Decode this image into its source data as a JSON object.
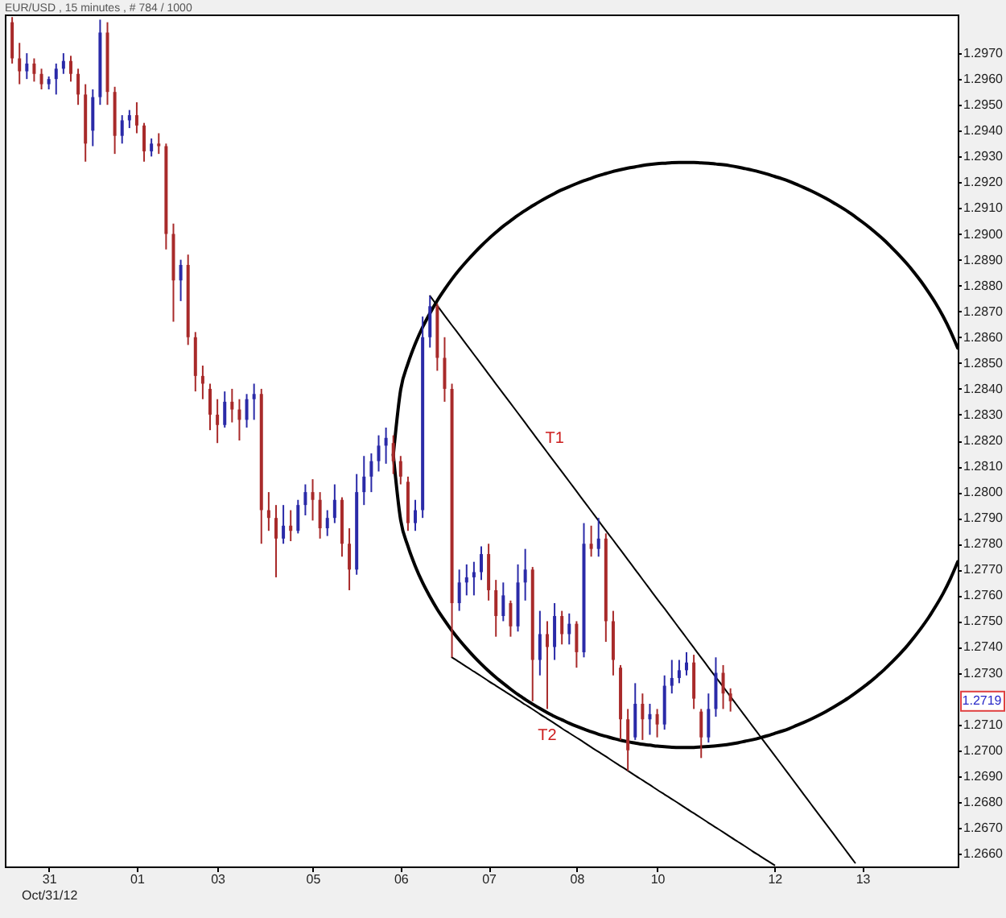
{
  "chart_data": {
    "type": "candlestick",
    "title": "EUR/USD , 15 minutes , # 784 / 1000",
    "categories": [
      null,
      null,
      null,
      null,
      null,
      "31\nOct/31/12",
      null,
      null,
      null,
      null,
      null,
      null,
      null,
      null,
      null,
      null,
      null,
      "01",
      null,
      null,
      null,
      null,
      null,
      null,
      null,
      null,
      null,
      null,
      "03",
      null,
      null,
      null,
      null,
      null,
      null,
      null,
      null,
      null,
      null,
      null,
      null,
      "05",
      null,
      null,
      null,
      null,
      null,
      null,
      null,
      null,
      null,
      null,
      null,
      "06",
      null,
      null,
      null,
      null,
      null,
      null,
      null,
      null,
      null,
      null,
      null,
      "07",
      null,
      null,
      null,
      null,
      null,
      null,
      null,
      null,
      null,
      null,
      null,
      "08",
      null,
      null,
      null,
      null,
      null,
      null,
      null,
      null,
      null,
      null,
      "10",
      null,
      null,
      null,
      null,
      null,
      null,
      null,
      null,
      null,
      null,
      null,
      null,
      null,
      null,
      null,
      "12",
      null,
      null,
      null,
      null,
      null,
      null,
      null,
      null,
      null,
      null,
      null,
      "13",
      null,
      null,
      null,
      null,
      null,
      null,
      null,
      null,
      null,
      null,
      null,
      null,
      null
    ],
    "ohlc": [
      [
        1.2982,
        1.2984,
        1.2966,
        1.2968
      ],
      [
        1.2968,
        1.2974,
        1.2958,
        1.2963
      ],
      [
        1.2963,
        1.297,
        1.296,
        1.2966
      ],
      [
        1.2966,
        1.2968,
        1.2959,
        1.2962
      ],
      [
        1.2962,
        1.2964,
        1.2956,
        1.2958
      ],
      [
        1.2958,
        1.2961,
        1.2956,
        1.296
      ],
      [
        1.296,
        1.2966,
        1.2954,
        1.2964
      ],
      [
        1.2964,
        1.297,
        1.2962,
        1.2967
      ],
      [
        1.2967,
        1.2969,
        1.2959,
        1.2962
      ],
      [
        1.2962,
        1.2964,
        1.295,
        1.2954
      ],
      [
        1.2954,
        1.2958,
        1.2928,
        1.2935
      ],
      [
        1.294,
        1.2956,
        1.2934,
        1.2953
      ],
      [
        1.2953,
        1.2983,
        1.295,
        1.2978
      ],
      [
        1.2978,
        1.2982,
        1.295,
        1.2955
      ],
      [
        1.2955,
        1.2957,
        1.2931,
        1.2938
      ],
      [
        1.2938,
        1.2946,
        1.2935,
        1.2944
      ],
      [
        1.2944,
        1.2948,
        1.2941,
        1.2946
      ],
      [
        1.2946,
        1.2951,
        1.2939,
        1.2942
      ],
      [
        1.2942,
        1.2943,
        1.2928,
        1.2932
      ],
      [
        1.2932,
        1.2937,
        1.293,
        1.2935
      ],
      [
        1.2935,
        1.2939,
        1.2931,
        1.2934
      ],
      [
        1.2934,
        1.2935,
        1.2894,
        1.29
      ],
      [
        1.29,
        1.2904,
        1.2866,
        1.2882
      ],
      [
        1.2882,
        1.289,
        1.2874,
        1.2888
      ],
      [
        1.2888,
        1.2892,
        1.2857,
        1.286
      ],
      [
        1.286,
        1.2862,
        1.2839,
        1.2845
      ],
      [
        1.2845,
        1.2849,
        1.2836,
        1.2842
      ],
      [
        1.284,
        1.2842,
        1.2824,
        1.283
      ],
      [
        1.283,
        1.2836,
        1.2819,
        1.2826
      ],
      [
        1.2826,
        1.2839,
        1.2825,
        1.2835
      ],
      [
        1.2835,
        1.284,
        1.2827,
        1.2832
      ],
      [
        1.2832,
        1.2836,
        1.282,
        1.2828
      ],
      [
        1.2828,
        1.2838,
        1.2825,
        1.2836
      ],
      [
        1.2836,
        1.2842,
        1.2828,
        1.2838
      ],
      [
        1.2838,
        1.284,
        1.278,
        1.2793
      ],
      [
        1.2793,
        1.28,
        1.2785,
        1.279
      ],
      [
        1.279,
        1.2795,
        1.2767,
        1.2782
      ],
      [
        1.2782,
        1.2795,
        1.278,
        1.2787
      ],
      [
        1.2787,
        1.2793,
        1.2781,
        1.2785
      ],
      [
        1.2785,
        1.2797,
        1.2784,
        1.2795
      ],
      [
        1.2795,
        1.2803,
        1.2791,
        1.28
      ],
      [
        1.28,
        1.2805,
        1.2789,
        1.2797
      ],
      [
        1.2797,
        1.28,
        1.2782,
        1.2786
      ],
      [
        1.2786,
        1.2793,
        1.2783,
        1.279
      ],
      [
        1.279,
        1.2803,
        1.2788,
        1.2797
      ],
      [
        1.2797,
        1.2798,
        1.2775,
        1.278
      ],
      [
        1.278,
        1.2786,
        1.2762,
        1.277
      ],
      [
        1.277,
        1.2807,
        1.2768,
        1.28
      ],
      [
        1.28,
        1.2814,
        1.2795,
        1.2806
      ],
      [
        1.2806,
        1.2815,
        1.28,
        1.2812
      ],
      [
        1.2812,
        1.2822,
        1.2808,
        1.2818
      ],
      [
        1.2818,
        1.2825,
        1.2811,
        1.2821
      ],
      [
        1.2819,
        1.2822,
        1.2807,
        1.2812
      ],
      [
        1.2812,
        1.2814,
        1.2803,
        1.2806
      ],
      [
        1.2804,
        1.2806,
        1.2785,
        1.2788
      ],
      [
        1.2788,
        1.2797,
        1.2785,
        1.2793
      ],
      [
        1.2793,
        1.2868,
        1.279,
        1.286
      ],
      [
        1.286,
        1.2876,
        1.2856,
        1.2872
      ],
      [
        1.2872,
        1.2873,
        1.2847,
        1.2852
      ],
      [
        1.2852,
        1.286,
        1.2835,
        1.284
      ],
      [
        1.284,
        1.2842,
        1.2736,
        1.2757
      ],
      [
        1.2757,
        1.277,
        1.2754,
        1.2765
      ],
      [
        1.2765,
        1.2772,
        1.276,
        1.2767
      ],
      [
        1.2767,
        1.2773,
        1.276,
        1.2769
      ],
      [
        1.2769,
        1.2779,
        1.2766,
        1.2776
      ],
      [
        1.2776,
        1.278,
        1.2758,
        1.2762
      ],
      [
        1.2762,
        1.2766,
        1.2744,
        1.2752
      ],
      [
        1.2752,
        1.2765,
        1.275,
        1.276
      ],
      [
        1.2757,
        1.2758,
        1.2744,
        1.2748
      ],
      [
        1.2748,
        1.2772,
        1.2746,
        1.2765
      ],
      [
        1.2765,
        1.2778,
        1.2758,
        1.277
      ],
      [
        1.277,
        1.2771,
        1.2719,
        1.2735
      ],
      [
        1.2735,
        1.2754,
        1.2729,
        1.2745
      ],
      [
        1.2745,
        1.275,
        1.2716,
        1.274
      ],
      [
        1.274,
        1.2757,
        1.2735,
        1.2752
      ],
      [
        1.2752,
        1.2754,
        1.2741,
        1.2745
      ],
      [
        1.2745,
        1.2753,
        1.2741,
        1.2749
      ],
      [
        1.2749,
        1.275,
        1.2732,
        1.2738
      ],
      [
        1.2738,
        1.2788,
        1.2736,
        1.278
      ],
      [
        1.278,
        1.2787,
        1.2775,
        1.2778
      ],
      [
        1.2778,
        1.279,
        1.2775,
        1.2782
      ],
      [
        1.2782,
        1.2784,
        1.2742,
        1.275
      ],
      [
        1.275,
        1.2754,
        1.2729,
        1.2735
      ],
      [
        1.2732,
        1.2733,
        1.2704,
        1.2712
      ],
      [
        1.2712,
        1.2716,
        1.2692,
        1.27
      ],
      [
        1.2705,
        1.2726,
        1.2704,
        1.2718
      ],
      [
        1.2718,
        1.2722,
        1.2704,
        1.2712
      ],
      [
        1.2712,
        1.2718,
        1.2706,
        1.2714
      ],
      [
        1.2714,
        1.2716,
        1.2705,
        1.271
      ],
      [
        1.271,
        1.2729,
        1.2708,
        1.2725
      ],
      [
        1.2725,
        1.2735,
        1.2722,
        1.2728
      ],
      [
        1.2728,
        1.2735,
        1.2726,
        1.2731
      ],
      [
        1.2731,
        1.2738,
        1.2729,
        1.2734
      ],
      [
        1.2734,
        1.2737,
        1.2716,
        1.272
      ],
      [
        1.2715,
        1.2716,
        1.2697,
        1.2705
      ],
      [
        1.2705,
        1.2722,
        1.2703,
        1.2716
      ],
      [
        1.2716,
        1.2736,
        1.2713,
        1.273
      ],
      [
        1.273,
        1.2733,
        1.2716,
        1.2722
      ],
      [
        1.2722,
        1.2724,
        1.2715,
        1.2719
      ],
      null,
      null,
      null,
      null,
      null,
      null,
      null,
      null,
      null,
      null,
      null,
      null,
      null,
      null,
      null,
      null,
      null,
      null,
      null,
      null,
      null,
      null,
      null,
      null,
      null,
      null,
      null,
      null,
      null,
      null,
      null
    ],
    "colors": [
      "#a82a2a",
      "#a82a2a",
      "#2a2aa8",
      "#a82a2a",
      "#a82a2a",
      "#2a2aa8",
      "#2a2aa8",
      "#2a2aa8",
      "#a82a2a",
      "#a82a2a",
      "#a82a2a",
      "#2a2aa8",
      "#2a2aa8",
      "#a82a2a",
      "#a82a2a",
      "#2a2aa8",
      "#2a2aa8",
      "#a82a2a",
      "#a82a2a",
      "#2a2aa8",
      "#a82a2a",
      "#a82a2a",
      "#a82a2a",
      "#2a2aa8",
      "#a82a2a",
      "#a82a2a",
      "#a82a2a",
      "#a82a2a",
      "#a82a2a",
      "#2a2aa8",
      "#a82a2a",
      "#a82a2a",
      "#2a2aa8",
      "#2a2aa8",
      "#a82a2a",
      "#a82a2a",
      "#a82a2a",
      "#2a2aa8",
      "#a82a2a",
      "#2a2aa8",
      "#2a2aa8",
      "#a82a2a",
      "#a82a2a",
      "#2a2aa8",
      "#2a2aa8",
      "#a82a2a",
      "#a82a2a",
      "#2a2aa8",
      "#2a2aa8",
      "#2a2aa8",
      "#2a2aa8",
      "#2a2aa8",
      "#a82a2a",
      "#a82a2a",
      "#a82a2a",
      "#2a2aa8",
      "#2a2aa8",
      "#2a2aa8",
      "#a82a2a",
      "#a82a2a",
      "#a82a2a",
      "#2a2aa8",
      "#2a2aa8",
      "#2a2aa8",
      "#2a2aa8",
      "#a82a2a",
      "#a82a2a",
      "#2a2aa8",
      "#a82a2a",
      "#2a2aa8",
      "#2a2aa8",
      "#a82a2a",
      "#2a2aa8",
      "#a82a2a",
      "#2a2aa8",
      "#a82a2a",
      "#2a2aa8",
      "#a82a2a",
      "#2a2aa8",
      "#a82a2a",
      "#2a2aa8",
      "#a82a2a",
      "#a82a2a",
      "#a82a2a",
      "#a82a2a",
      "#2a2aa8",
      "#a82a2a",
      "#2a2aa8",
      "#a82a2a",
      "#2a2aa8",
      "#2a2aa8",
      "#2a2aa8",
      "#2a2aa8",
      "#a82a2a",
      "#a82a2a",
      "#2a2aa8",
      "#2a2aa8",
      "#a82a2a",
      "#a82a2a",
      null,
      null,
      null,
      null,
      null,
      null,
      null,
      null,
      null,
      null,
      null,
      null,
      null,
      null,
      null,
      null,
      null,
      null,
      null,
      null,
      null,
      null,
      null,
      null,
      null,
      null,
      null,
      null,
      null,
      null,
      null
    ],
    "series": [
      {
        "name": "T1",
        "type": "line",
        "color": "#000000",
        "values": [
          null,
          null,
          null,
          null,
          null,
          null,
          null,
          null,
          null,
          null,
          null,
          null,
          null,
          null,
          null,
          null,
          null,
          null,
          null,
          null,
          null,
          null,
          null,
          null,
          null,
          null,
          null,
          null,
          null,
          null,
          null,
          null,
          null,
          null,
          null,
          null,
          null,
          null,
          null,
          null,
          null,
          null,
          null,
          null,
          null,
          null,
          null,
          null,
          null,
          null,
          null,
          null,
          null,
          null,
          null,
          null,
          null,
          1.2876,
          1.28722,
          1.28684,
          1.28646,
          1.28609,
          1.28571,
          1.28533,
          1.28495,
          1.28457,
          1.28419,
          1.28381,
          1.28344,
          1.28306,
          1.28268,
          1.2823,
          1.28192,
          1.28154,
          1.28116,
          1.28079,
          1.28041,
          1.28003,
          1.27965,
          1.27927,
          1.27889,
          1.27851,
          1.27814,
          1.27776,
          1.27738,
          1.277,
          1.27662,
          1.27624,
          1.27586,
          1.27549,
          1.27511,
          1.27473,
          1.27435,
          1.27397,
          1.27359,
          1.27321,
          1.27283,
          1.27246,
          1.27208,
          1.2717,
          1.27132,
          1.27094,
          1.27056,
          1.27018,
          1.26981,
          1.26943,
          1.26905,
          1.26867,
          1.26829,
          1.26791,
          1.26753,
          1.26716,
          1.26678,
          1.2664,
          1.26602,
          1.26564,
          null,
          null,
          null,
          null,
          null,
          null,
          null,
          null,
          null,
          null,
          null,
          null,
          null,
          null
        ]
      },
      {
        "name": "T2",
        "type": "line",
        "color": "#000000",
        "values": [
          null,
          null,
          null,
          null,
          null,
          null,
          null,
          null,
          null,
          null,
          null,
          null,
          null,
          null,
          null,
          null,
          null,
          null,
          null,
          null,
          null,
          null,
          null,
          null,
          null,
          null,
          null,
          null,
          null,
          null,
          null,
          null,
          null,
          null,
          null,
          null,
          null,
          null,
          null,
          null,
          null,
          null,
          null,
          null,
          null,
          null,
          null,
          null,
          null,
          null,
          null,
          null,
          null,
          null,
          null,
          null,
          null,
          null,
          null,
          null,
          1.2736,
          1.27342,
          1.27323,
          1.27305,
          1.27287,
          1.27268,
          1.2725,
          1.27232,
          1.27214,
          1.27195,
          1.27177,
          1.27159,
          1.2714,
          1.27122,
          1.27104,
          1.27085,
          1.27067,
          1.27049,
          1.27031,
          1.27012,
          1.26994,
          1.26976,
          1.26957,
          1.26939,
          1.26921,
          1.26902,
          1.26884,
          1.26866,
          1.26847,
          1.26829,
          1.26811,
          1.26793,
          1.26774,
          1.26756,
          1.26738,
          1.26719,
          1.26701,
          1.26683,
          1.26664,
          1.26646,
          1.26628,
          1.26609,
          1.26591,
          1.26573,
          1.26555,
          null,
          null,
          null,
          null,
          null,
          null,
          null,
          null,
          null,
          null,
          null,
          null,
          null,
          null,
          null,
          null,
          null,
          null,
          null,
          null,
          null,
          null,
          null,
          null,
          null
        ]
      },
      {
        "type": "line",
        "color": "#000000",
        "values": [
          null,
          null,
          null,
          null,
          null,
          null,
          null,
          null,
          null,
          null,
          null,
          null,
          null,
          null,
          null,
          null,
          null,
          null,
          null,
          null,
          null,
          null,
          null,
          null,
          null,
          null,
          null,
          null,
          null,
          null,
          null,
          null,
          null,
          null,
          null,
          null,
          null,
          null,
          null,
          null,
          null,
          null,
          null,
          null,
          null,
          null,
          null,
          null,
          null,
          null,
          null,
          null,
          1.28144,
          1.28396,
          1.28498,
          1.28575,
          1.28639,
          1.28693,
          1.28742,
          1.28785,
          1.28825,
          1.28861,
          1.28894,
          1.28925,
          1.28954,
          1.28981,
          1.29006,
          1.2903,
          1.29051,
          1.29072,
          1.29091,
          1.29109,
          1.29126,
          1.29142,
          1.29157,
          1.29171,
          1.29183,
          1.29195,
          1.29206,
          1.29216,
          1.29226,
          1.29234,
          1.29242,
          1.29249,
          1.29255,
          1.2926,
          1.29265,
          1.29269,
          1.29272,
          1.29274,
          1.29276,
          1.29277,
          1.29277,
          1.29277,
          1.29275,
          1.29274,
          1.29271,
          1.29268,
          1.29264,
          1.29259,
          1.29253,
          1.29247,
          1.2924,
          1.29232,
          1.29223,
          1.29214,
          1.29204,
          1.29192,
          1.2918,
          1.29167,
          1.29153,
          1.29138,
          1.29122,
          1.29105,
          1.29087,
          1.29067,
          1.29046,
          1.29024,
          1.29,
          1.28975,
          1.28947,
          1.28918,
          1.28887,
          1.28853,
          1.28816,
          1.28775,
          1.28731,
          1.28681,
          1.28624,
          1.28558
        ]
      },
      {
        "type": "line",
        "color": "#000000",
        "values": [
          null,
          null,
          null,
          null,
          null,
          null,
          null,
          null,
          null,
          null,
          null,
          null,
          null,
          null,
          null,
          null,
          null,
          null,
          null,
          null,
          null,
          null,
          null,
          null,
          null,
          null,
          null,
          null,
          null,
          null,
          null,
          null,
          null,
          null,
          null,
          null,
          null,
          null,
          null,
          null,
          null,
          null,
          null,
          null,
          null,
          null,
          null,
          null,
          null,
          null,
          null,
          null,
          1.28144,
          1.27892,
          1.2779,
          1.27713,
          1.27649,
          1.27595,
          1.27546,
          1.27503,
          1.27463,
          1.27427,
          1.27394,
          1.27363,
          1.27334,
          1.27307,
          1.27282,
          1.27259,
          1.27237,
          1.27216,
          1.27197,
          1.27179,
          1.27162,
          1.27146,
          1.27131,
          1.27118,
          1.27105,
          1.27093,
          1.27082,
          1.27072,
          1.27062,
          1.27054,
          1.27046,
          1.27039,
          1.27033,
          1.27028,
          1.27023,
          1.2702,
          1.27016,
          1.27014,
          1.27012,
          1.27011,
          1.27011,
          1.27011,
          1.27013,
          1.27015,
          1.27017,
          1.2702,
          1.27024,
          1.27029,
          1.27035,
          1.27041,
          1.27048,
          1.27056,
          1.27065,
          1.27074,
          1.27084,
          1.27096,
          1.27108,
          1.27121,
          1.27135,
          1.2715,
          1.27166,
          1.27183,
          1.27201,
          1.27221,
          1.27242,
          1.27264,
          1.27288,
          1.27313,
          1.27341,
          1.2737,
          1.27401,
          1.27436,
          1.27473,
          1.27513,
          1.27558,
          1.27607,
          1.27664,
          1.2773
        ]
      }
    ],
    "annotations": [
      "1.2719"
    ],
    "ylim": [
      1.2655,
      1.2985
    ],
    "yticks": [
      {
        "value": 1.266,
        "label": "1.2660"
      },
      {
        "value": 1.267,
        "label": "1.2670"
      },
      {
        "value": 1.268,
        "label": "1.2680"
      },
      {
        "value": 1.269,
        "label": "1.2690"
      },
      {
        "value": 1.27,
        "label": "1.2700"
      },
      {
        "value": 1.271,
        "label": "1.2710"
      },
      {
        "value": 1.273,
        "label": "1.2730"
      },
      {
        "value": 1.274,
        "label": "1.2740"
      },
      {
        "value": 1.275,
        "label": "1.2750"
      },
      {
        "value": 1.276,
        "label": "1.2760"
      },
      {
        "value": 1.277,
        "label": "1.2770"
      },
      {
        "value": 1.278,
        "label": "1.2780"
      },
      {
        "value": 1.279,
        "label": "1.2790"
      },
      {
        "value": 1.28,
        "label": "1.2800"
      },
      {
        "value": 1.281,
        "label": "1.2810"
      },
      {
        "value": 1.282,
        "label": "1.2820"
      },
      {
        "value": 1.283,
        "label": "1.2830"
      },
      {
        "value": 1.284,
        "label": "1.2840"
      },
      {
        "value": 1.285,
        "label": "1.2850"
      },
      {
        "value": 1.286,
        "label": "1.2860"
      },
      {
        "value": 1.287,
        "label": "1.2870"
      },
      {
        "value": 1.288,
        "label": "1.2880"
      },
      {
        "value": 1.289,
        "label": "1.2890"
      },
      {
        "value": 1.29,
        "label": "1.2900"
      },
      {
        "value": 1.291,
        "label": "1.2910"
      },
      {
        "value": 1.292,
        "label": "1.2920"
      },
      {
        "value": 1.293,
        "label": "1.2930"
      },
      {
        "value": 1.294,
        "label": "1.2940"
      },
      {
        "value": 1.295,
        "label": "1.2950"
      },
      {
        "value": 1.296,
        "label": "1.2960"
      },
      {
        "value": 1.297,
        "label": "1.2970"
      }
    ]
  }
}
